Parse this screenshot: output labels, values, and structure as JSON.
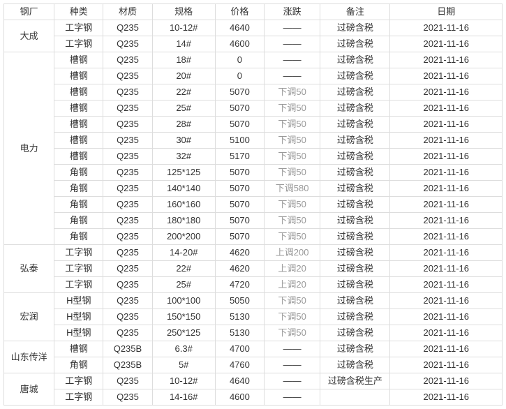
{
  "headers": {
    "factory": "钢厂",
    "type": "种类",
    "material": "材质",
    "spec": "规格",
    "price": "价格",
    "change": "涨跌",
    "remark": "备注",
    "date": "日期"
  },
  "dash": "——",
  "colors": {
    "text": "#333333",
    "muted": "#999999",
    "border": "#dddddd",
    "background": "#ffffff"
  },
  "groups": [
    {
      "factory": "大成",
      "rows": [
        {
          "type": "工字钢",
          "material": "Q235",
          "spec": "10-12#",
          "price": "4640",
          "change": "——",
          "change_muted": false,
          "remark": "过磅含税",
          "date": "2021-11-16"
        },
        {
          "type": "工字钢",
          "material": "Q235",
          "spec": "14#",
          "price": "4600",
          "change": "——",
          "change_muted": false,
          "remark": "过磅含税",
          "date": "2021-11-16"
        }
      ]
    },
    {
      "factory": "电力",
      "rows": [
        {
          "type": "槽钢",
          "material": "Q235",
          "spec": "18#",
          "price": "0",
          "change": "——",
          "change_muted": false,
          "remark": "过磅含税",
          "date": "2021-11-16"
        },
        {
          "type": "槽钢",
          "material": "Q235",
          "spec": "20#",
          "price": "0",
          "change": "——",
          "change_muted": false,
          "remark": "过磅含税",
          "date": "2021-11-16"
        },
        {
          "type": "槽钢",
          "material": "Q235",
          "spec": "22#",
          "price": "5070",
          "change": "下调50",
          "change_muted": true,
          "remark": "过磅含税",
          "date": "2021-11-16"
        },
        {
          "type": "槽钢",
          "material": "Q235",
          "spec": "25#",
          "price": "5070",
          "change": "下调50",
          "change_muted": true,
          "remark": "过磅含税",
          "date": "2021-11-16"
        },
        {
          "type": "槽钢",
          "material": "Q235",
          "spec": "28#",
          "price": "5070",
          "change": "下调50",
          "change_muted": true,
          "remark": "过磅含税",
          "date": "2021-11-16"
        },
        {
          "type": "槽钢",
          "material": "Q235",
          "spec": "30#",
          "price": "5100",
          "change": "下调50",
          "change_muted": true,
          "remark": "过磅含税",
          "date": "2021-11-16"
        },
        {
          "type": "槽钢",
          "material": "Q235",
          "spec": "32#",
          "price": "5170",
          "change": "下调50",
          "change_muted": true,
          "remark": "过磅含税",
          "date": "2021-11-16"
        },
        {
          "type": "角钢",
          "material": "Q235",
          "spec": "125*125",
          "price": "5070",
          "change": "下调50",
          "change_muted": true,
          "remark": "过磅含税",
          "date": "2021-11-16"
        },
        {
          "type": "角钢",
          "material": "Q235",
          "spec": "140*140",
          "price": "5070",
          "change": "下调580",
          "change_muted": true,
          "remark": "过磅含税",
          "date": "2021-11-16"
        },
        {
          "type": "角钢",
          "material": "Q235",
          "spec": "160*160",
          "price": "5070",
          "change": "下调50",
          "change_muted": true,
          "remark": "过磅含税",
          "date": "2021-11-16"
        },
        {
          "type": "角钢",
          "material": "Q235",
          "spec": "180*180",
          "price": "5070",
          "change": "下调50",
          "change_muted": true,
          "remark": "过磅含税",
          "date": "2021-11-16"
        },
        {
          "type": "角钢",
          "material": "Q235",
          "spec": "200*200",
          "price": "5070",
          "change": "下调50",
          "change_muted": true,
          "remark": "过磅含税",
          "date": "2021-11-16"
        }
      ]
    },
    {
      "factory": "弘泰",
      "rows": [
        {
          "type": "工字钢",
          "material": "Q235",
          "spec": "14-20#",
          "price": "4620",
          "change": "上调200",
          "change_muted": true,
          "remark": "过磅含税",
          "date": "2021-11-16"
        },
        {
          "type": "工字钢",
          "material": "Q235",
          "spec": "22#",
          "price": "4620",
          "change": "上调20",
          "change_muted": true,
          "remark": "过磅含税",
          "date": "2021-11-16"
        },
        {
          "type": "工字钢",
          "material": "Q235",
          "spec": "25#",
          "price": "4720",
          "change": "上调20",
          "change_muted": true,
          "remark": "过磅含税",
          "date": "2021-11-16"
        }
      ]
    },
    {
      "factory": "宏润",
      "rows": [
        {
          "type": "H型钢",
          "material": "Q235",
          "spec": "100*100",
          "price": "5050",
          "change": "下调50",
          "change_muted": true,
          "remark": "过磅含税",
          "date": "2021-11-16"
        },
        {
          "type": "H型钢",
          "material": "Q235",
          "spec": "150*150",
          "price": "5130",
          "change": "下调50",
          "change_muted": true,
          "remark": "过磅含税",
          "date": "2021-11-16"
        },
        {
          "type": "H型钢",
          "material": "Q235",
          "spec": "250*125",
          "price": "5130",
          "change": "下调50",
          "change_muted": true,
          "remark": "过磅含税",
          "date": "2021-11-16"
        }
      ]
    },
    {
      "factory": "山东传洋",
      "rows": [
        {
          "type": "槽钢",
          "material": "Q235B",
          "spec": "6.3#",
          "price": "4700",
          "change": "——",
          "change_muted": false,
          "remark": "过磅含税",
          "date": "2021-11-16"
        },
        {
          "type": "角钢",
          "material": "Q235B",
          "spec": "5#",
          "price": "4760",
          "change": "——",
          "change_muted": false,
          "remark": "过磅含税",
          "date": "2021-11-16"
        }
      ]
    },
    {
      "factory": "唐城",
      "rows": [
        {
          "type": "工字钢",
          "material": "Q235",
          "spec": "10-12#",
          "price": "4640",
          "change": "——",
          "change_muted": false,
          "remark": "过磅含税生产",
          "date": "2021-11-16"
        },
        {
          "type": "工字钢",
          "material": "Q235",
          "spec": "14-16#",
          "price": "4600",
          "change": "——",
          "change_muted": false,
          "remark": "",
          "date": "2021-11-16"
        }
      ]
    }
  ]
}
